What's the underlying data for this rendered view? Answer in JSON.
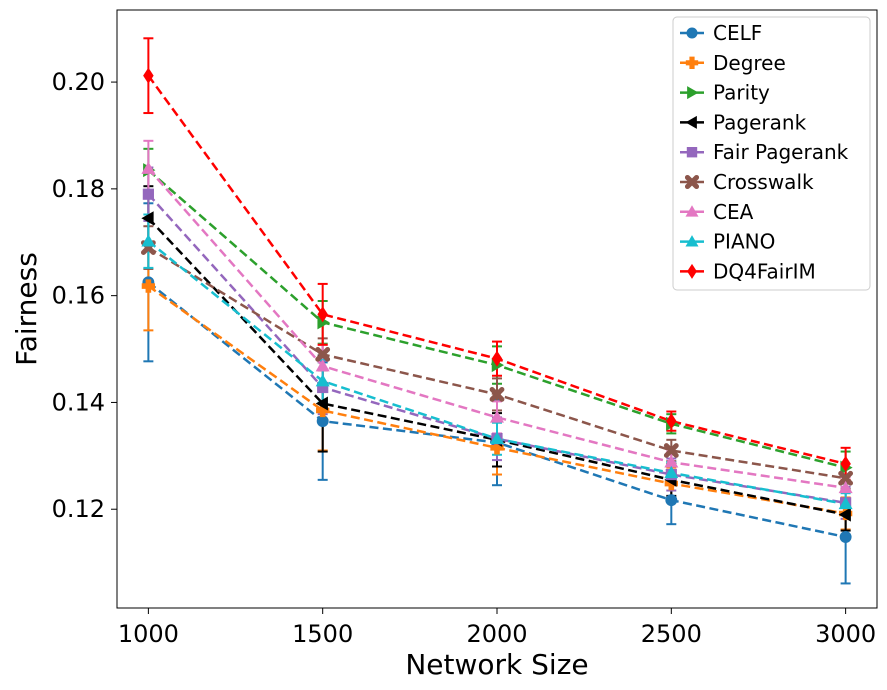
{
  "chart_data": {
    "type": "line",
    "title": "",
    "xlabel": "Network Size",
    "ylabel": "Fairness",
    "x": [
      1000,
      1500,
      2000,
      2500,
      3000
    ],
    "xticks": [
      "1000",
      "1500",
      "2000",
      "2500",
      "3000"
    ],
    "yticks": [
      0.12,
      0.14,
      0.16,
      0.18,
      0.2
    ],
    "ytick_labels": [
      "0.12",
      "0.14",
      "0.16",
      "0.18",
      "0.20"
    ],
    "xlim": [
      910,
      3090
    ],
    "ylim": [
      0.1015,
      0.2135
    ],
    "legend_position": "top-right",
    "series": [
      {
        "name": "CELF",
        "color": "#1f77b4",
        "marker": "circle",
        "values": [
          0.1625,
          0.1365,
          0.1325,
          0.1217,
          0.1148
        ],
        "errors": [
          0.0148,
          0.011,
          0.008,
          0.0045,
          0.0087
        ]
      },
      {
        "name": "Degree",
        "color": "#ff7f0e",
        "marker": "plus",
        "values": [
          0.1618,
          0.1385,
          0.1315,
          0.1248,
          0.1192
        ],
        "errors": [
          0.0083,
          0.0075,
          0.005,
          0.003,
          0.003
        ]
      },
      {
        "name": "Parity",
        "color": "#2ca02c",
        "marker": "triangle-right",
        "values": [
          0.1835,
          0.155,
          0.147,
          0.136,
          0.1278
        ],
        "errors": [
          0.004,
          0.004,
          0.0035,
          0.0018,
          0.003
        ]
      },
      {
        "name": "Pagerank",
        "color": "#000000",
        "marker": "triangle-left",
        "values": [
          0.1745,
          0.1398,
          0.133,
          0.1255,
          0.119
        ],
        "errors": [
          0.006,
          0.009,
          0.005,
          0.003,
          0.003
        ]
      },
      {
        "name": "Fair Pagerank",
        "color": "#9467bd",
        "marker": "square",
        "values": [
          0.179,
          0.1428,
          0.1332,
          0.1265,
          0.1212
        ],
        "errors": [
          0.005,
          0.005,
          0.004,
          0.003,
          0.003
        ]
      },
      {
        "name": "Crosswalk",
        "color": "#8c564b",
        "marker": "x",
        "values": [
          0.169,
          0.149,
          0.1415,
          0.131,
          0.1258
        ],
        "errors": [
          0.004,
          0.003,
          0.003,
          0.002,
          0.002
        ]
      },
      {
        "name": "CEA",
        "color": "#e377c2",
        "marker": "triangle-up",
        "values": [
          0.1838,
          0.1468,
          0.1372,
          0.1288,
          0.124
        ],
        "errors": [
          0.0052,
          0.004,
          0.003,
          0.002,
          0.002
        ]
      },
      {
        "name": "PIANO",
        "color": "#17becf",
        "marker": "triangle-up",
        "values": [
          0.1702,
          0.144,
          0.1332,
          0.1268,
          0.121
        ],
        "errors": [
          0.005,
          0.004,
          0.003,
          0.002,
          0.002
        ]
      },
      {
        "name": "DQ4FairIM",
        "color": "#ff0000",
        "marker": "diamond",
        "values": [
          0.2012,
          0.1565,
          0.1482,
          0.1365,
          0.1285
        ],
        "errors": [
          0.007,
          0.0057,
          0.0032,
          0.0018,
          0.003
        ]
      }
    ]
  }
}
